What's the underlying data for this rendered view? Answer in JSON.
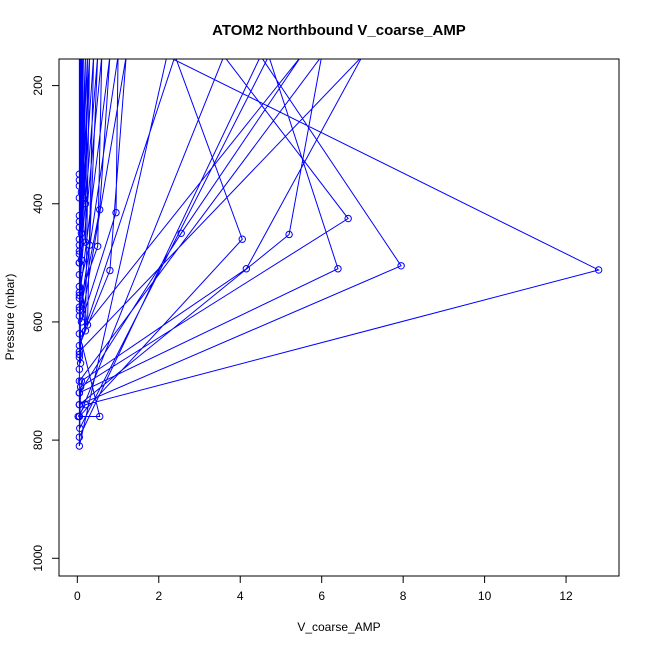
{
  "chart_data": {
    "type": "line",
    "title": "ATOM2 Northbound V_coarse_AMP",
    "xlabel": "V_coarse_AMP",
    "ylabel": "Pressure (mbar)",
    "xlim": [
      -0.45,
      13.3
    ],
    "ylim": [
      1030,
      155
    ],
    "y_reversed": true,
    "x_ticks": [
      0,
      2,
      4,
      6,
      8,
      10,
      12
    ],
    "y_ticks": [
      200,
      400,
      600,
      800,
      1000
    ],
    "grid": false,
    "legend": "none",
    "line_color": "#0000ff",
    "marker": "open-circle",
    "points_above_range_note": "",
    "series": [
      {
        "values": [
          [
            0.02,
            760
          ],
          [
            0.2,
            740
          ],
          [
            12.8,
            512
          ],
          [
            2.2,
            150
          ],
          [
            0.05,
            810
          ],
          [
            0.05,
            740
          ],
          [
            7.95,
            505
          ],
          [
            4.5,
            150
          ],
          [
            0.05,
            795
          ],
          [
            0.05,
            720
          ],
          [
            6.4,
            510
          ],
          [
            4.7,
            150
          ],
          [
            0.06,
            780
          ],
          [
            0.08,
            710
          ],
          [
            6.65,
            425
          ],
          [
            3.6,
            150
          ],
          [
            0.05,
            760
          ],
          [
            0.1,
            700
          ],
          [
            4.15,
            510
          ],
          [
            7.0,
            150
          ],
          [
            0.05,
            650
          ],
          [
            0.05,
            740
          ],
          [
            5.2,
            452
          ],
          [
            6.0,
            150
          ],
          [
            0.05,
            700
          ],
          [
            0.05,
            720
          ],
          [
            2.55,
            450
          ],
          [
            5.5,
            150
          ],
          [
            0.05,
            620
          ],
          [
            0.55,
            760
          ],
          [
            0.05,
            760
          ],
          [
            4.05,
            460
          ],
          [
            2.4,
            150
          ],
          [
            0.05,
            640
          ],
          [
            0.8,
            513
          ],
          [
            1.2,
            150
          ],
          [
            0.1,
            600
          ],
          [
            0.95,
            415
          ],
          [
            1.0,
            150
          ],
          [
            0.05,
            590
          ],
          [
            0.55,
            410
          ],
          [
            0.8,
            150
          ],
          [
            0.05,
            560
          ],
          [
            0.5,
            472
          ],
          [
            0.6,
            150
          ],
          [
            0.05,
            540
          ],
          [
            0.3,
            470
          ],
          [
            0.5,
            150
          ],
          [
            0.05,
            520
          ],
          [
            0.25,
            605
          ],
          [
            0.4,
            150
          ],
          [
            0.05,
            500
          ],
          [
            0.2,
            615
          ],
          [
            0.3,
            150
          ],
          [
            0.05,
            480
          ],
          [
            0.2,
            465
          ],
          [
            0.25,
            150
          ],
          [
            0.05,
            460
          ],
          [
            0.15,
            390
          ],
          [
            0.2,
            150
          ],
          [
            0.05,
            440
          ],
          [
            0.1,
            380
          ],
          [
            0.15,
            150
          ],
          [
            0.05,
            420
          ],
          [
            0.05,
            350
          ],
          [
            0.1,
            150
          ],
          [
            0.05,
            390
          ],
          [
            0.15,
            395
          ],
          [
            0.12,
            150
          ],
          [
            0.05,
            370
          ],
          [
            0.2,
            400
          ],
          [
            0.08,
            150
          ],
          [
            0.05,
            360
          ],
          [
            0.05,
            550
          ],
          [
            0.06,
            150
          ],
          [
            0.05,
            555
          ],
          [
            0.05,
            575
          ],
          [
            0.05,
            150
          ],
          [
            0.05,
            580
          ],
          [
            0.1,
            495
          ],
          [
            0.3,
            150
          ],
          [
            0.05,
            470
          ],
          [
            0.05,
            485
          ],
          [
            0.2,
            150
          ],
          [
            0.05,
            500
          ],
          [
            0.1,
            450
          ],
          [
            0.1,
            150
          ],
          [
            0.05,
            430
          ],
          [
            0.05,
            655
          ],
          [
            0.05,
            150
          ],
          [
            0.05,
            660
          ],
          [
            0.08,
            670
          ],
          [
            0.05,
            150
          ],
          [
            0.05,
            680
          ]
        ]
      }
    ]
  }
}
